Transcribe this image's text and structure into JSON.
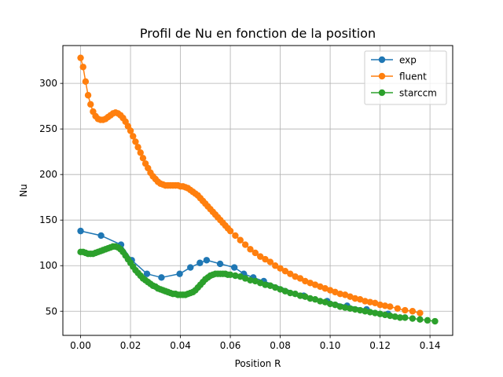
{
  "chart_data": {
    "type": "line",
    "title": "Profil de Nu en fonction de la position",
    "xlabel": "Position R",
    "ylabel": "Nu",
    "xlim": [
      -0.0071,
      0.1491
    ],
    "ylim": [
      23.5,
      341.5
    ],
    "xticks": [
      "0.00",
      "0.02",
      "0.04",
      "0.06",
      "0.08",
      "0.10",
      "0.12",
      "0.14"
    ],
    "yticks": [
      "50",
      "100",
      "150",
      "200",
      "250",
      "300"
    ],
    "grid": true,
    "legend_position": "top-right",
    "marker": "circle",
    "series": [
      {
        "name": "exp",
        "color": "#1f77b4",
        "x": [
          0.0,
          0.0082,
          0.0162,
          0.0205,
          0.0266,
          0.0324,
          0.0397,
          0.044,
          0.0478,
          0.0505,
          0.0559,
          0.0616,
          0.0654,
          0.0692,
          0.0734,
          0.0894,
          0.0988,
          0.1068,
          0.1146,
          0.1232
        ],
        "y": [
          138,
          133,
          123,
          106,
          91,
          87,
          91,
          98,
          103,
          106,
          102,
          98,
          91,
          87,
          83,
          67,
          61,
          56,
          52,
          47
        ]
      },
      {
        "name": "fluent",
        "color": "#ff7f0e",
        "x": [
          0.0,
          0.001,
          0.002,
          0.003,
          0.004,
          0.005,
          0.006,
          0.007,
          0.008,
          0.009,
          0.01,
          0.011,
          0.012,
          0.013,
          0.014,
          0.015,
          0.016,
          0.017,
          0.018,
          0.019,
          0.02,
          0.021,
          0.022,
          0.023,
          0.024,
          0.025,
          0.026,
          0.027,
          0.028,
          0.029,
          0.03,
          0.031,
          0.032,
          0.033,
          0.034,
          0.035,
          0.036,
          0.037,
          0.038,
          0.039,
          0.04,
          0.041,
          0.042,
          0.043,
          0.044,
          0.045,
          0.046,
          0.047,
          0.048,
          0.049,
          0.05,
          0.051,
          0.052,
          0.053,
          0.054,
          0.055,
          0.056,
          0.057,
          0.058,
          0.059,
          0.06,
          0.062,
          0.064,
          0.066,
          0.068,
          0.07,
          0.072,
          0.074,
          0.076,
          0.078,
          0.08,
          0.082,
          0.084,
          0.086,
          0.088,
          0.09,
          0.092,
          0.094,
          0.096,
          0.098,
          0.1,
          0.102,
          0.104,
          0.106,
          0.108,
          0.11,
          0.112,
          0.114,
          0.116,
          0.118,
          0.12,
          0.122,
          0.124,
          0.127,
          0.13,
          0.133,
          0.136
        ],
        "y": [
          328,
          318,
          302,
          287,
          277,
          269,
          264,
          261,
          260,
          260,
          261,
          263,
          265,
          267,
          268,
          267,
          265,
          262,
          258,
          253,
          248,
          242,
          236,
          230,
          224,
          218,
          212,
          207,
          202,
          198,
          195,
          192,
          190,
          189,
          188,
          188,
          188,
          188,
          188,
          188,
          187,
          187,
          186,
          185,
          183,
          181,
          179,
          177,
          174,
          171,
          168,
          165,
          162,
          159,
          156,
          153,
          150,
          147,
          144,
          141,
          138,
          133,
          128,
          123,
          118,
          114,
          110,
          107,
          104,
          100,
          97,
          94,
          91,
          88,
          86,
          83,
          81,
          79,
          77,
          75,
          73,
          71,
          69,
          68,
          66,
          64,
          63,
          61,
          60,
          59,
          57,
          56,
          55,
          53,
          51,
          50,
          48
        ]
      },
      {
        "name": "starccm",
        "color": "#2ca02c",
        "x": [
          0.0,
          0.001,
          0.002,
          0.003,
          0.004,
          0.005,
          0.006,
          0.007,
          0.008,
          0.009,
          0.01,
          0.011,
          0.012,
          0.013,
          0.014,
          0.015,
          0.016,
          0.017,
          0.018,
          0.019,
          0.02,
          0.021,
          0.022,
          0.023,
          0.024,
          0.025,
          0.026,
          0.027,
          0.028,
          0.029,
          0.03,
          0.031,
          0.032,
          0.033,
          0.034,
          0.035,
          0.036,
          0.037,
          0.038,
          0.039,
          0.04,
          0.041,
          0.042,
          0.043,
          0.044,
          0.045,
          0.046,
          0.047,
          0.048,
          0.049,
          0.05,
          0.051,
          0.052,
          0.053,
          0.054,
          0.055,
          0.056,
          0.057,
          0.058,
          0.059,
          0.06,
          0.062,
          0.064,
          0.066,
          0.068,
          0.07,
          0.072,
          0.074,
          0.076,
          0.078,
          0.08,
          0.082,
          0.084,
          0.086,
          0.088,
          0.09,
          0.092,
          0.094,
          0.096,
          0.098,
          0.1,
          0.102,
          0.104,
          0.106,
          0.108,
          0.11,
          0.112,
          0.114,
          0.116,
          0.118,
          0.12,
          0.122,
          0.124,
          0.126,
          0.128,
          0.13,
          0.133,
          0.136,
          0.139,
          0.142
        ],
        "y": [
          115,
          115,
          114,
          113,
          113,
          113,
          114,
          115,
          116,
          117,
          118,
          119,
          120,
          121,
          121,
          120,
          118,
          115,
          111,
          107,
          103,
          99,
          95,
          92,
          89,
          86,
          84,
          82,
          80,
          78,
          77,
          75,
          74,
          73,
          72,
          71,
          70,
          69,
          69,
          68,
          68,
          68,
          68,
          69,
          70,
          71,
          73,
          76,
          79,
          82,
          85,
          87,
          89,
          90,
          91,
          91,
          91,
          91,
          91,
          90,
          90,
          89,
          88,
          86,
          84,
          83,
          81,
          79,
          78,
          76,
          74,
          72,
          70,
          69,
          67,
          66,
          64,
          63,
          61,
          60,
          58,
          57,
          55,
          54,
          53,
          52,
          51,
          50,
          49,
          48,
          47,
          46,
          45,
          44,
          43,
          43,
          42,
          41,
          40,
          39
        ]
      }
    ]
  }
}
